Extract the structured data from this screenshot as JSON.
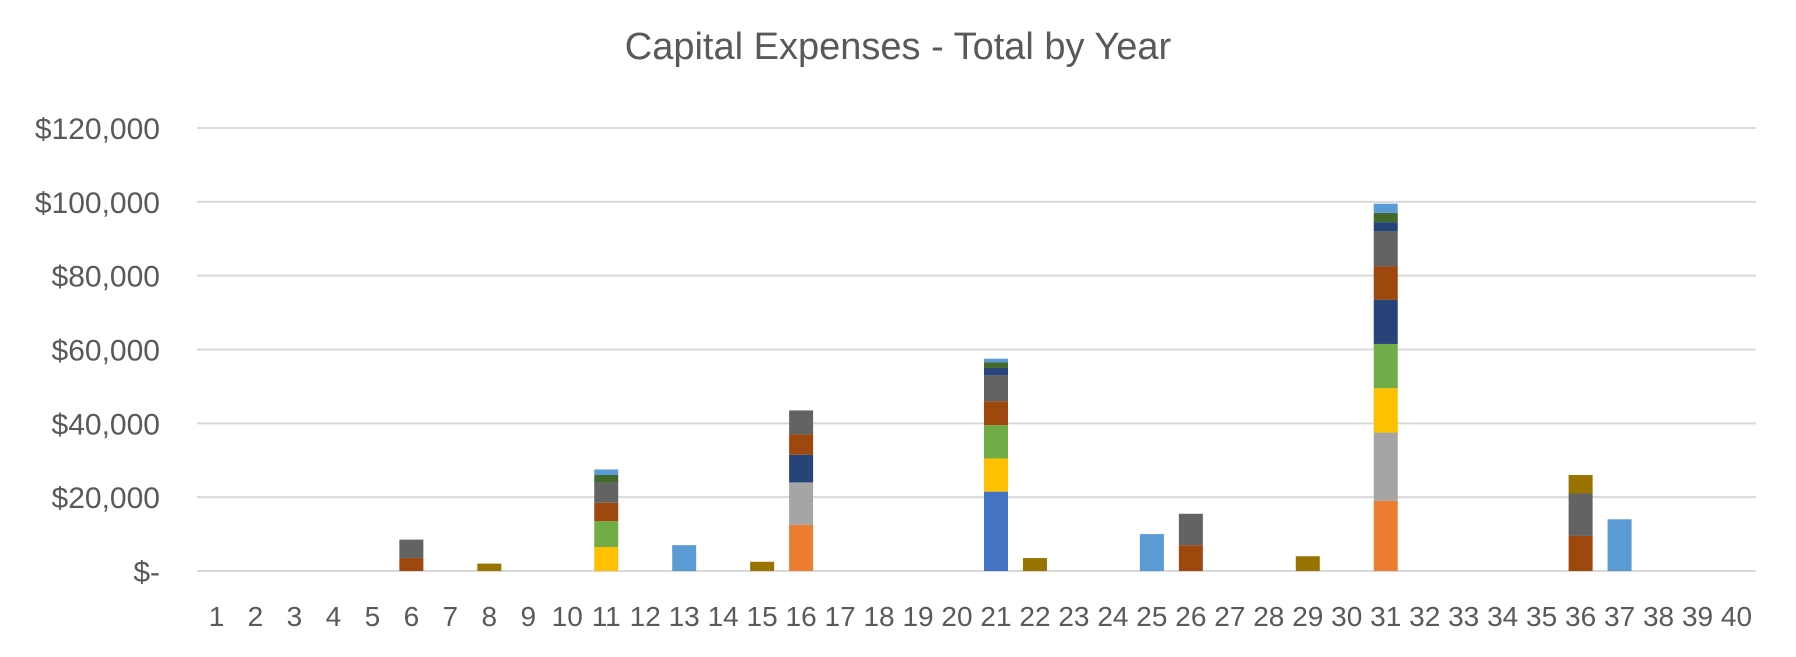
{
  "chart_data": {
    "type": "bar",
    "stacked": true,
    "title": "Capital Expenses - Total by Year",
    "xlabel": "",
    "ylabel": "",
    "ylim": [
      0,
      120000
    ],
    "grid": true,
    "legend": "none",
    "y_ticks": [
      0,
      20000,
      40000,
      60000,
      80000,
      100000,
      120000
    ],
    "y_tick_labels": [
      "$-",
      "$20,000",
      "$40,000",
      "$60,000",
      "$80,000",
      "$100,000",
      "$120,000"
    ],
    "categories": [
      "1",
      "2",
      "3",
      "4",
      "5",
      "6",
      "7",
      "8",
      "9",
      "10",
      "11",
      "12",
      "13",
      "14",
      "15",
      "16",
      "17",
      "18",
      "19",
      "20",
      "21",
      "22",
      "23",
      "24",
      "25",
      "26",
      "27",
      "28",
      "29",
      "30",
      "31",
      "32",
      "33",
      "34",
      "35",
      "36",
      "37",
      "38",
      "39",
      "40"
    ],
    "colors": {
      "blue": "#4472c4",
      "orange": "#ed7d31",
      "gray_light": "#a5a5a5",
      "gold": "#ffc000",
      "green": "#70ad47",
      "navy": "#264478",
      "rust": "#9e480e",
      "gray_dark": "#636363",
      "olive": "#997300",
      "dark_green": "#43682b",
      "light_blue": "#5b9bd5"
    },
    "stacks": [
      {
        "x": "6",
        "segments": [
          {
            "color": "rust",
            "value": 3500
          },
          {
            "color": "gray_dark",
            "value": 5000
          }
        ]
      },
      {
        "x": "8",
        "segments": [
          {
            "color": "olive",
            "value": 2000
          }
        ]
      },
      {
        "x": "11",
        "segments": [
          {
            "color": "gold",
            "value": 6500
          },
          {
            "color": "green",
            "value": 7000
          },
          {
            "color": "rust",
            "value": 5000
          },
          {
            "color": "gray_dark",
            "value": 5500
          },
          {
            "color": "dark_green",
            "value": 2000
          },
          {
            "color": "light_blue",
            "value": 1500
          }
        ]
      },
      {
        "x": "13",
        "segments": [
          {
            "color": "light_blue",
            "value": 7000
          }
        ]
      },
      {
        "x": "15",
        "segments": [
          {
            "color": "olive",
            "value": 2500
          }
        ]
      },
      {
        "x": "16",
        "segments": [
          {
            "color": "orange",
            "value": 12500
          },
          {
            "color": "gray_light",
            "value": 11500
          },
          {
            "color": "navy",
            "value": 7500
          },
          {
            "color": "rust",
            "value": 5500
          },
          {
            "color": "gray_dark",
            "value": 6500
          }
        ]
      },
      {
        "x": "21",
        "segments": [
          {
            "color": "blue",
            "value": 21500
          },
          {
            "color": "gold",
            "value": 9000
          },
          {
            "color": "green",
            "value": 9000
          },
          {
            "color": "rust",
            "value": 6500
          },
          {
            "color": "gray_dark",
            "value": 7000
          },
          {
            "color": "navy",
            "value": 2000
          },
          {
            "color": "dark_green",
            "value": 1500
          },
          {
            "color": "light_blue",
            "value": 1000
          }
        ]
      },
      {
        "x": "22",
        "segments": [
          {
            "color": "olive",
            "value": 3500
          }
        ]
      },
      {
        "x": "25",
        "segments": [
          {
            "color": "light_blue",
            "value": 10000
          }
        ]
      },
      {
        "x": "26",
        "segments": [
          {
            "color": "rust",
            "value": 7000
          },
          {
            "color": "gray_dark",
            "value": 8500
          }
        ]
      },
      {
        "x": "29",
        "segments": [
          {
            "color": "olive",
            "value": 4000
          }
        ]
      },
      {
        "x": "31",
        "segments": [
          {
            "color": "orange",
            "value": 19000
          },
          {
            "color": "gray_light",
            "value": 18500
          },
          {
            "color": "gold",
            "value": 12000
          },
          {
            "color": "green",
            "value": 12000
          },
          {
            "color": "navy",
            "value": 12000
          },
          {
            "color": "rust",
            "value": 9000
          },
          {
            "color": "gray_dark",
            "value": 9500
          },
          {
            "color": "navy",
            "value": 2500
          },
          {
            "color": "dark_green",
            "value": 2500
          },
          {
            "color": "light_blue",
            "value": 2500
          }
        ]
      },
      {
        "x": "36",
        "segments": [
          {
            "color": "rust",
            "value": 9500
          },
          {
            "color": "gray_dark",
            "value": 11500
          },
          {
            "color": "olive",
            "value": 5000
          }
        ]
      },
      {
        "x": "37",
        "segments": [
          {
            "color": "light_blue",
            "value": 14000
          }
        ]
      }
    ]
  }
}
